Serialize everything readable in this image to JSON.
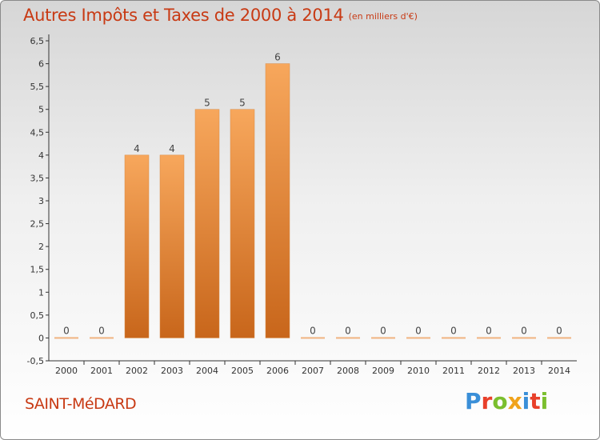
{
  "header": {
    "title": "Autres Impôts et Taxes de 2000 à 2014",
    "unit": "(en milliers d'€)"
  },
  "footer": {
    "commune": "SAINT-MéDARD",
    "brand": "Proxiti",
    "brand_colors": [
      "#3a8fd8",
      "#e8402a",
      "#7bbf2e",
      "#f0a31c",
      "#3a8fd8",
      "#e8402a",
      "#7bbf2e"
    ]
  },
  "colors": {
    "bar_top": "#f7a75c",
    "bar_bottom": "#c8661b",
    "text_red": "#c83a14"
  },
  "chart_data": {
    "type": "bar",
    "categories": [
      "2000",
      "2001",
      "2002",
      "2003",
      "2004",
      "2005",
      "2006",
      "2007",
      "2008",
      "2009",
      "2010",
      "2011",
      "2012",
      "2013",
      "2014"
    ],
    "values": [
      0,
      0,
      4,
      4,
      5,
      5,
      6,
      0,
      0,
      0,
      0,
      0,
      0,
      0,
      0
    ],
    "data_labels": [
      "0",
      "0",
      "4",
      "4",
      "5",
      "5",
      "6",
      "0",
      "0",
      "0",
      "0",
      "0",
      "0",
      "0",
      "0"
    ],
    "ylim": [
      -0.5,
      6.5
    ],
    "yticks": [
      "-0,5",
      "0",
      "0,5",
      "1",
      "1,5",
      "2",
      "2,5",
      "3",
      "3,5",
      "4",
      "4,5",
      "5",
      "5,5",
      "6",
      "6,5"
    ],
    "ytick_values": [
      -0.5,
      0,
      0.5,
      1,
      1.5,
      2,
      2.5,
      3,
      3.5,
      4,
      4.5,
      5,
      5.5,
      6,
      6.5
    ],
    "grid": false,
    "xlabel": "",
    "ylabel": ""
  }
}
